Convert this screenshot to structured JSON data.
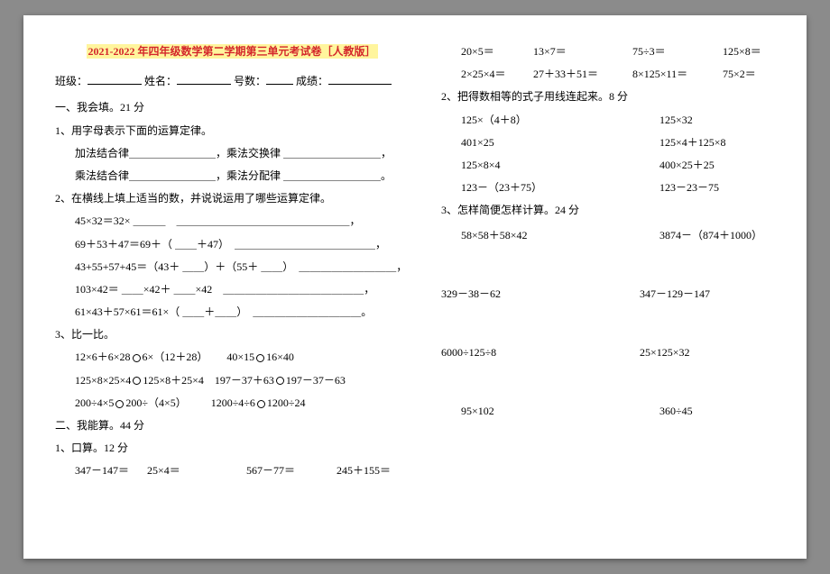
{
  "title": "2021-2022 年四年级数学第二学期第三单元考试卷［人教版］",
  "info": {
    "class": "班级：",
    "name": "姓名：",
    "number": "号数：",
    "score": "成绩："
  },
  "s1": {
    "head": "一、我会填。21 分",
    "q1": {
      "t": "1、用字母表示下面的运算定律。",
      "a": "加法结合律＿＿＿＿＿＿＿＿，乘法交换律 ＿＿＿＿＿＿＿＿＿，",
      "b": "乘法结合律＿＿＿＿＿＿＿＿，乘法分配律 ＿＿＿＿＿＿＿＿＿。"
    },
    "q2": {
      "t": "2、在横线上填上适当的数，并说说运用了哪些运算定律。",
      "a": "45×32＝32× ＿＿＿　＿＿＿＿＿＿＿＿＿＿＿＿＿＿＿＿，",
      "b": "69＋53＋47＝69＋（ ＿＿＋47）　＿＿＿＿＿＿＿＿＿＿＿＿＿，",
      "c": "43+55+57+45＝（43＋ ＿＿）＋（55＋ ＿＿）　＿＿＿＿＿＿＿＿＿，",
      "d": "103×42＝ ＿＿×42＋ ＿＿×42　＿＿＿＿＿＿＿＿＿＿＿＿＿，",
      "e": "61×43＋57×61＝61×（ ＿＿＋＿＿）　＿＿＿＿＿＿＿＿＿＿。"
    },
    "q3": {
      "t": "3、比一比。",
      "rows": [
        [
          "12×6＋6×28",
          "6×（12＋28）",
          "40×15",
          "16×40"
        ],
        [
          "125×8×25×4",
          "125×8＋25×4",
          "197－37＋63",
          "197－37－63"
        ],
        [
          "200÷4×5",
          "200÷（4×5）",
          "1200÷4÷6",
          "1200÷24"
        ]
      ]
    }
  },
  "s2": {
    "head": "二、我能算。44 分",
    "q1": {
      "t": "1、口算。12 分",
      "r1": [
        "347－147＝",
        "25×4＝",
        "567－77＝",
        "245＋155＝"
      ],
      "r2": [
        "20×5＝",
        "13×7＝",
        "75÷3＝",
        "125×8＝"
      ],
      "r3": [
        "2×25×4＝",
        "27＋33＋51＝",
        "8×125×11＝",
        "75×2＝"
      ]
    },
    "q2": {
      "t": "2、把得数相等的式子用线连起来。8 分",
      "pairs": [
        [
          "125×（4＋8）",
          "125×32"
        ],
        [
          "401×25",
          "125×4＋125×8"
        ],
        [
          "125×8×4",
          "400×25＋25"
        ],
        [
          "123－（23＋75）",
          "123－23－75"
        ]
      ]
    },
    "q3": {
      "t": "3、怎样简便怎样计算。24 分",
      "rows": [
        [
          "58×58＋58×42",
          "3874－（874＋1000）"
        ],
        [
          "329－38－62",
          "347－129－147"
        ],
        [
          "6000÷125÷8",
          "25×125×32"
        ],
        [
          "95×102",
          "360÷45"
        ]
      ]
    }
  }
}
